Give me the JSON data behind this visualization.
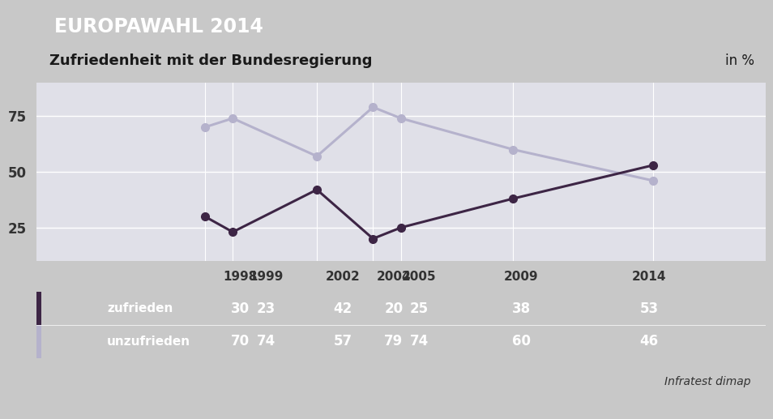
{
  "title_banner": "EUROPAWAHL 2014",
  "subtitle": "Zufriedenheit mit der Bundesregierung",
  "unit": "in %",
  "source": "Infratest dimap",
  "years": [
    1998,
    1999,
    2002,
    2004,
    2005,
    2009,
    2014
  ],
  "zufrieden": [
    30,
    23,
    42,
    20,
    25,
    38,
    53
  ],
  "unzufrieden": [
    70,
    74,
    57,
    79,
    74,
    60,
    46
  ],
  "color_zufrieden_line": "#3d2545",
  "color_unzufrieden_line": "#b5b2cc",
  "color_banner": "#1a3473",
  "color_table_bg": "#4a7fb5",
  "color_swatch_zufrieden": "#3d2545",
  "color_swatch_unzufrieden": "#b5b2cc",
  "color_bg": "#c8c8c8",
  "color_plot_bg": "#e0e0e8",
  "color_table_header_bg": "#e8e8e8",
  "yticks": [
    25,
    50,
    75
  ],
  "ylim": [
    10,
    90
  ],
  "marker_size": 7,
  "line_width": 2.2
}
